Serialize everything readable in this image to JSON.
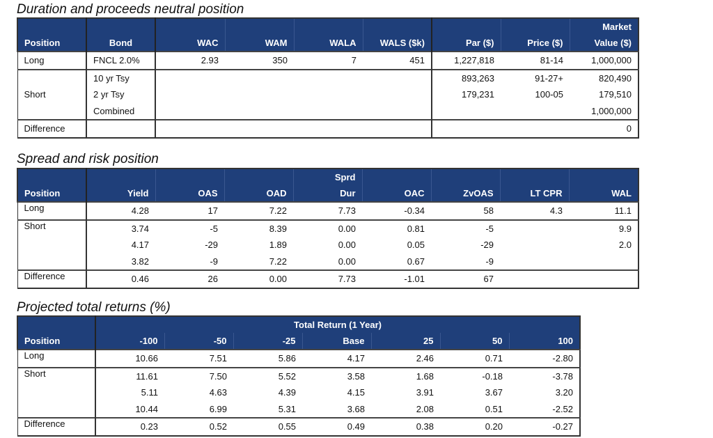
{
  "tables": [
    {
      "title": "Duration and proceeds neutral position",
      "header_top": [
        "",
        "",
        "",
        "",
        "",
        "",
        "",
        "",
        "Market"
      ],
      "header": [
        "Position",
        "Bond",
        "WAC",
        "WAM",
        "WALA",
        "WALS ($k)",
        "Par ($)",
        "Price ($)",
        "Value ($)"
      ],
      "groups": [
        {
          "position": "Long",
          "lines": [
            [
              "FNCL 2.0%",
              "2.93",
              "350",
              "7",
              "451",
              "1,227,818",
              "81-14",
              "1,000,000"
            ]
          ]
        },
        {
          "position": "Short",
          "lines": [
            [
              "10 yr Tsy",
              "",
              "",
              "",
              "",
              "893,263",
              "91-27+",
              "820,490"
            ],
            [
              "2 yr Tsy",
              "",
              "",
              "",
              "",
              "179,231",
              "100-05",
              "179,510"
            ],
            [
              "Combined",
              "",
              "",
              "",
              "",
              "",
              "",
              "1,000,000"
            ]
          ]
        },
        {
          "position": "Difference",
          "lines": [
            [
              "",
              "",
              "",
              "",
              "",
              "",
              "",
              "0"
            ]
          ]
        }
      ]
    },
    {
      "title": "Spread and risk position",
      "header_top": [
        "",
        "",
        "",
        "",
        "Sprd",
        "",
        "",
        "",
        ""
      ],
      "header": [
        "Position",
        "Yield",
        "OAS",
        "OAD",
        "Dur",
        "OAC",
        "ZvOAS",
        "LT CPR",
        "WAL"
      ],
      "groups": [
        {
          "position": "Long",
          "lines": [
            [
              "4.28",
              "17",
              "7.22",
              "7.73",
              "-0.34",
              "58",
              "4.3",
              "11.1"
            ]
          ]
        },
        {
          "position": "Short",
          "lines": [
            [
              "3.74",
              "-5",
              "8.39",
              "0.00",
              "0.81",
              "-5",
              "",
              "9.9"
            ],
            [
              "4.17",
              "-29",
              "1.89",
              "0.00",
              "0.05",
              "-29",
              "",
              "2.0"
            ],
            [
              "3.82",
              "-9",
              "7.22",
              "0.00",
              "0.67",
              "-9",
              "",
              ""
            ]
          ]
        },
        {
          "position": "Difference",
          "lines": [
            [
              "0.46",
              "26",
              "0.00",
              "7.73",
              "-1.01",
              "67",
              "",
              ""
            ]
          ]
        }
      ]
    },
    {
      "title": "Projected total returns (%)",
      "header_span": "Total Return (1 Year)",
      "header": [
        "Position",
        "-100",
        "-50",
        "-25",
        "Base",
        "25",
        "50",
        "100"
      ],
      "groups": [
        {
          "position": "Long",
          "lines": [
            [
              "10.66",
              "7.51",
              "5.86",
              "4.17",
              "2.46",
              "0.71",
              "-2.80"
            ]
          ]
        },
        {
          "position": "Short",
          "lines": [
            [
              "11.61",
              "7.50",
              "5.52",
              "3.58",
              "1.68",
              "-0.18",
              "-3.78"
            ],
            [
              "5.11",
              "4.63",
              "4.39",
              "4.15",
              "3.91",
              "3.67",
              "3.20"
            ],
            [
              "10.44",
              "6.99",
              "5.31",
              "3.68",
              "2.08",
              "0.51",
              "-2.52"
            ]
          ]
        },
        {
          "position": "Difference",
          "lines": [
            [
              "0.23",
              "0.52",
              "0.55",
              "0.49",
              "0.38",
              "0.20",
              "-0.27"
            ]
          ]
        }
      ]
    }
  ],
  "colors": {
    "header_bg": "#1f3f7a",
    "header_text": "#ffffff"
  }
}
